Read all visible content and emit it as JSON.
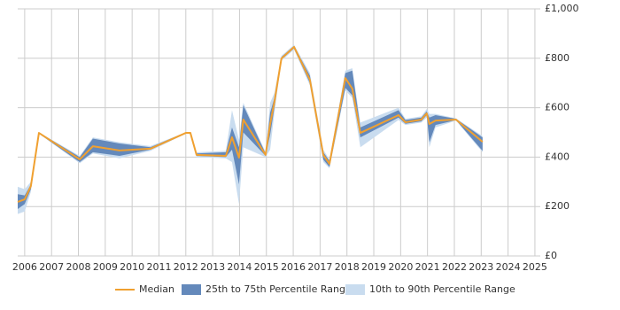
{
  "chart_data": {
    "type": "range-line",
    "x": [
      2005.74,
      2006.0,
      2006.23,
      2006.53,
      2008.05,
      2008.54,
      2009.53,
      2010.68,
      2012.0,
      2012.17,
      2012.4,
      2013.49,
      2013.72,
      2013.98,
      2014.14,
      2014.97,
      2015.14,
      2015.3,
      2015.56,
      2016.03,
      2016.62,
      2017.12,
      2017.35,
      2017.94,
      2018.2,
      2018.5,
      2019.92,
      2020.18,
      2020.77,
      2020.97,
      2021.07,
      2021.3,
      2022.06,
      2023.05
    ],
    "series": [
      {
        "name": "Median",
        "color": "#f0a030",
        "values": [
          219,
          229,
          283,
          498,
          391,
          444,
          427,
          434,
          498,
          498,
          409,
          405,
          480,
          398,
          552,
          409,
          534,
          624,
          799,
          846,
          713,
          409,
          373,
          720,
          677,
          498,
          570,
          541,
          552,
          577,
          534,
          548,
          552,
          462
        ]
      },
      {
        "name": "25th to 75th Percentile Range",
        "color": "#6489bb",
        "low": [
          190,
          210,
          270,
          495,
          380,
          420,
          405,
          430,
          495,
          495,
          405,
          400,
          430,
          290,
          500,
          405,
          490,
          600,
          795,
          840,
          700,
          390,
          360,
          680,
          650,
          480,
          560,
          535,
          545,
          570,
          460,
          530,
          550,
          425
        ],
        "high": [
          250,
          245,
          290,
          500,
          400,
          475,
          455,
          440,
          500,
          500,
          415,
          420,
          520,
          440,
          610,
          415,
          580,
          640,
          805,
          850,
          730,
          420,
          385,
          740,
          750,
          520,
          590,
          550,
          560,
          585,
          560,
          570,
          555,
          480
        ]
      },
      {
        "name": "10th to 90th Percentile Range",
        "color": "#c9dcef",
        "low": [
          170,
          180,
          260,
          495,
          375,
          415,
          395,
          425,
          495,
          495,
          400,
          395,
          380,
          210,
          440,
          400,
          430,
          580,
          790,
          835,
          690,
          380,
          355,
          670,
          640,
          440,
          550,
          530,
          540,
          560,
          440,
          520,
          548,
          420
        ],
        "high": [
          280,
          270,
          300,
          500,
          405,
          480,
          460,
          445,
          500,
          500,
          420,
          425,
          590,
          470,
          620,
          420,
          620,
          660,
          810,
          855,
          740,
          430,
          390,
          750,
          760,
          540,
          600,
          555,
          565,
          595,
          575,
          575,
          557,
          485
        ]
      }
    ],
    "xlim": [
      2005.74,
      2025.2
    ],
    "xticks": [
      2006,
      2007,
      2008,
      2009,
      2010,
      2011,
      2012,
      2013,
      2014,
      2015,
      2016,
      2017,
      2018,
      2019,
      2020,
      2021,
      2022,
      2023,
      2024,
      2025
    ],
    "ylim": [
      0,
      1000
    ],
    "yticks": [
      {
        "value": 0,
        "label": "£0"
      },
      {
        "value": 200,
        "label": "£200"
      },
      {
        "value": 400,
        "label": "£400"
      },
      {
        "value": 600,
        "label": "£600"
      },
      {
        "value": 800,
        "label": "£800"
      },
      {
        "value": 1000,
        "label": "£1,000"
      }
    ],
    "grid": true
  }
}
